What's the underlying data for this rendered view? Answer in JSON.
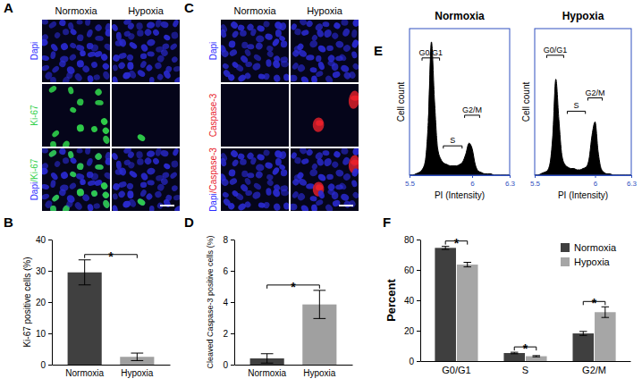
{
  "chart_data": [
    {
      "type": "micrograph",
      "title": "A",
      "columns": [
        "Normoxia",
        "Hypoxia"
      ],
      "rows": [
        "Dapi",
        "Ki-67",
        "Dapi/Ki-67"
      ],
      "color": "#2fd04a"
    },
    {
      "type": "micrograph",
      "title": "C",
      "columns": [
        "Normoxia",
        "Hypoxia"
      ],
      "rows": [
        "Dapi",
        "Caspase-3",
        "Dapi/Caspase-3"
      ],
      "color": "#e8202a"
    },
    {
      "type": "bar",
      "title": "B",
      "categories": [
        "Normoxia",
        "Hypoxia"
      ],
      "values": [
        29.5,
        2.5
      ],
      "errors": [
        4,
        1.2
      ],
      "colors": [
        "#404040",
        "#a0a0a0"
      ],
      "y_label": "Ki-67 positive cells (%)",
      "ylim": [
        0,
        40
      ],
      "yticks": [
        0,
        10,
        20,
        30,
        40
      ],
      "annotations": [
        {
          "text": "*"
        }
      ]
    },
    {
      "type": "bar",
      "title": "D",
      "categories": [
        "Normoxia",
        "Hypoxia"
      ],
      "values": [
        0.4,
        3.85
      ],
      "errors": [
        0.3,
        0.9
      ],
      "colors": [
        "#404040",
        "#a0a0a0"
      ],
      "y_label": "Cleaved Caspase-3 positive cells (%)",
      "ylim": [
        0,
        8
      ],
      "yticks": [
        0,
        2,
        4,
        6,
        8
      ],
      "annotations": [
        {
          "text": "*"
        }
      ]
    },
    {
      "type": "area",
      "title": "E",
      "subtitle": "Normoxia",
      "x_label": "PI (Intensity)",
      "y_label": "Cell count",
      "color": "#000000",
      "x": [
        5.5,
        5.525,
        5.55,
        5.575,
        5.6,
        5.625,
        5.65,
        5.675,
        5.7,
        5.725,
        5.75,
        5.775,
        5.8,
        5.825,
        5.85,
        5.875,
        5.9,
        5.925,
        5.95,
        5.975,
        6,
        6.025,
        6.05,
        6.075,
        6.1,
        6.125,
        6.15,
        6.175,
        6.2,
        6.225,
        6.25,
        6.275,
        6.3
      ],
      "values": [
        0,
        0,
        1,
        2,
        4,
        10,
        40,
        100,
        55,
        20,
        12,
        9,
        8,
        7,
        7,
        7,
        8,
        10,
        16,
        24,
        20,
        8,
        3,
        2,
        1,
        1,
        1,
        0,
        0,
        0,
        0,
        0,
        0
      ],
      "xlim": [
        5.5,
        6.3
      ],
      "xticks": [
        5.5,
        6,
        6.3
      ],
      "ylim": [
        0,
        110
      ],
      "tick_labels": "x",
      "annotations": [
        {
          "text": "G0/G1",
          "x": [
            5.6,
            5.74
          ],
          "y": 88
        },
        {
          "text": "S",
          "x": [
            5.77,
            5.92
          ],
          "y": 22
        },
        {
          "text": "G2/M",
          "x": [
            5.94,
            6.06
          ],
          "y": 45
        }
      ]
    },
    {
      "type": "area",
      "subtitle": "Hypoxia",
      "x_label": "PI (Intensity)",
      "y_label": "Cell count",
      "color": "#000000",
      "x": [
        5.5,
        5.525,
        5.55,
        5.575,
        5.6,
        5.625,
        5.65,
        5.675,
        5.7,
        5.725,
        5.75,
        5.775,
        5.8,
        5.825,
        5.85,
        5.875,
        5.9,
        5.925,
        5.95,
        5.975,
        6,
        6.025,
        6.05,
        6.075,
        6.1,
        6.125,
        6.15,
        6.175,
        6.2,
        6.225,
        6.25,
        6.275,
        6.3
      ],
      "values": [
        0,
        0,
        1,
        2,
        3,
        8,
        30,
        72,
        42,
        15,
        8,
        6,
        5,
        5,
        4,
        4,
        5,
        6,
        12,
        30,
        40,
        18,
        5,
        2,
        1,
        1,
        0,
        0,
        0,
        0,
        0,
        0,
        0
      ],
      "xlim": [
        5.5,
        6.3
      ],
      "xticks": [
        5.5,
        6,
        6.3
      ],
      "ylim": [
        0,
        110
      ],
      "tick_labels": "x",
      "annotations": [
        {
          "text": "G0/G1",
          "x": [
            5.6,
            5.74
          ],
          "y": 90
        },
        {
          "text": "S",
          "x": [
            5.77,
            5.92
          ],
          "y": 48
        },
        {
          "text": "G2/M",
          "x": [
            5.94,
            6.06
          ],
          "y": 58
        }
      ]
    },
    {
      "type": "bar",
      "title": "F",
      "categories": [
        "G0/G1",
        "S",
        "G2/M"
      ],
      "series": [
        {
          "name": "Normoxia",
          "color": "#3f3f3f",
          "values": [
            74.5,
            5.3,
            18.2
          ],
          "errors": [
            1,
            0.5,
            1.3
          ]
        },
        {
          "name": "Hypoxia",
          "color": "#a6a6a6",
          "values": [
            63.5,
            3.2,
            32.2
          ],
          "errors": [
            1.5,
            0.4,
            3.5
          ]
        }
      ],
      "y_label": "Percent",
      "ylim": [
        0,
        80
      ],
      "yticks": [
        0,
        20,
        40,
        60,
        80
      ],
      "legend": "top-right",
      "annotations": [
        {
          "text": "*",
          "category": "G0/G1"
        },
        {
          "text": "*",
          "category": "S"
        },
        {
          "text": "*",
          "category": "G2/M"
        }
      ]
    }
  ]
}
